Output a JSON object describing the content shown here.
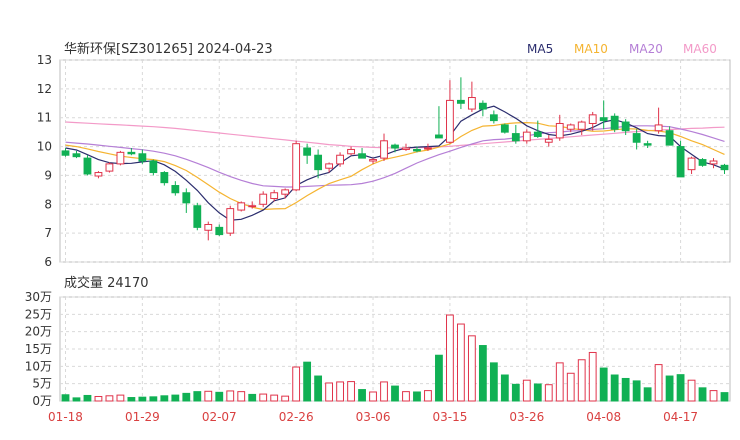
{
  "title": "华新环保[SZ301265] 2024-04-23",
  "legend": [
    {
      "label": "MA5",
      "color": "#2b2d6e"
    },
    {
      "label": "MA10",
      "color": "#f5b431"
    },
    {
      "label": "MA20",
      "color": "#b57fd6"
    },
    {
      "label": "MA60",
      "color": "#f39ac8"
    }
  ],
  "volume_title": "成交量 24170",
  "colors": {
    "up": "#e0334a",
    "down": "#10b054",
    "grid": "#d9d9d9",
    "axis": "#333333",
    "date": "#d94040"
  },
  "chart_data": [
    {
      "type": "candlestick",
      "ylim": [
        6,
        13
      ],
      "yticks": [
        6,
        7,
        8,
        9,
        10,
        11,
        12,
        13
      ],
      "xtick_labels": [
        "01-18",
        "01-29",
        "02-07",
        "02-26",
        "03-06",
        "03-15",
        "03-26",
        "04-08",
        "04-17"
      ],
      "xtick_index": [
        0,
        7,
        14,
        21,
        28,
        35,
        42,
        49,
        56
      ],
      "ohlc": [
        [
          9.85,
          9.95,
          9.65,
          9.7
        ],
        [
          9.75,
          9.85,
          9.6,
          9.65
        ],
        [
          9.6,
          9.7,
          9.0,
          9.05
        ],
        [
          8.98,
          9.15,
          8.9,
          9.1
        ],
        [
          9.15,
          9.45,
          9.1,
          9.4
        ],
        [
          9.4,
          9.85,
          9.35,
          9.8
        ],
        [
          9.8,
          9.95,
          9.7,
          9.75
        ],
        [
          9.75,
          9.9,
          9.4,
          9.5
        ],
        [
          9.5,
          9.55,
          9.0,
          9.1
        ],
        [
          9.1,
          9.15,
          8.65,
          8.75
        ],
        [
          8.65,
          8.8,
          8.3,
          8.4
        ],
        [
          8.4,
          8.55,
          7.7,
          8.05
        ],
        [
          7.95,
          8.05,
          7.1,
          7.2
        ],
        [
          7.1,
          7.4,
          6.75,
          7.3
        ],
        [
          7.2,
          7.3,
          6.9,
          6.95
        ],
        [
          7.0,
          7.95,
          6.9,
          7.85
        ],
        [
          7.8,
          8.1,
          7.75,
          8.05
        ],
        [
          7.95,
          8.1,
          7.85,
          7.95
        ],
        [
          8.0,
          8.45,
          7.9,
          8.35
        ],
        [
          8.2,
          8.5,
          8.1,
          8.4
        ],
        [
          8.35,
          8.55,
          8.2,
          8.5
        ],
        [
          8.5,
          10.2,
          8.45,
          10.1
        ],
        [
          9.95,
          10.1,
          9.4,
          9.7
        ],
        [
          9.7,
          9.9,
          8.9,
          9.2
        ],
        [
          9.25,
          9.45,
          9.1,
          9.4
        ],
        [
          9.4,
          9.8,
          9.3,
          9.7
        ],
        [
          9.75,
          10.0,
          9.7,
          9.9
        ],
        [
          9.75,
          9.95,
          9.6,
          9.6
        ],
        [
          9.5,
          9.6,
          9.4,
          9.55
        ],
        [
          9.6,
          10.45,
          9.5,
          10.2
        ],
        [
          10.05,
          10.1,
          9.8,
          9.95
        ],
        [
          9.9,
          10.1,
          9.85,
          9.95
        ],
        [
          9.9,
          10.0,
          9.8,
          9.85
        ],
        [
          9.95,
          10.1,
          9.85,
          9.95
        ],
        [
          10.4,
          11.4,
          10.3,
          10.3
        ],
        [
          10.15,
          12.3,
          10.1,
          11.6
        ],
        [
          11.6,
          12.4,
          11.3,
          11.5
        ],
        [
          11.3,
          12.25,
          11.2,
          11.7
        ],
        [
          11.5,
          11.6,
          11.05,
          11.3
        ],
        [
          11.1,
          11.25,
          10.8,
          10.9
        ],
        [
          10.75,
          10.8,
          10.45,
          10.5
        ],
        [
          10.45,
          10.75,
          10.1,
          10.2
        ],
        [
          10.2,
          10.6,
          10.1,
          10.5
        ],
        [
          10.5,
          10.9,
          10.3,
          10.35
        ],
        [
          10.15,
          10.4,
          10.0,
          10.25
        ],
        [
          10.3,
          11.1,
          10.2,
          10.8
        ],
        [
          10.6,
          10.8,
          10.5,
          10.75
        ],
        [
          10.6,
          10.9,
          10.4,
          10.85
        ],
        [
          10.8,
          11.2,
          10.55,
          11.1
        ],
        [
          11.0,
          11.6,
          10.6,
          10.9
        ],
        [
          11.05,
          11.15,
          10.5,
          10.6
        ],
        [
          10.85,
          10.95,
          10.4,
          10.55
        ],
        [
          10.45,
          10.6,
          9.9,
          10.15
        ],
        [
          10.1,
          10.2,
          9.95,
          10.05
        ],
        [
          10.55,
          11.35,
          10.45,
          10.75
        ],
        [
          10.55,
          10.7,
          10.1,
          10.05
        ],
        [
          10.0,
          10.2,
          8.95,
          8.95
        ],
        [
          9.2,
          9.65,
          9.05,
          9.6
        ],
        [
          9.55,
          9.6,
          9.3,
          9.35
        ],
        [
          9.4,
          9.6,
          9.25,
          9.5
        ],
        [
          9.35,
          9.4,
          9.05,
          9.2
        ]
      ],
      "ma5": [
        9.95,
        9.88,
        9.72,
        9.55,
        9.44,
        9.41,
        9.42,
        9.47,
        9.51,
        9.37,
        9.14,
        8.83,
        8.48,
        8.05,
        7.7,
        7.45,
        7.48,
        7.62,
        7.8,
        8.12,
        8.22,
        8.65,
        8.85,
        9.0,
        9.1,
        9.43,
        9.68,
        9.72,
        9.6,
        9.7,
        9.85,
        9.95,
        9.98,
        10.0,
        10.02,
        10.37,
        10.88,
        11.1,
        11.3,
        11.4,
        11.2,
        10.98,
        10.72,
        10.55,
        10.42,
        10.37,
        10.43,
        10.53,
        10.66,
        10.85,
        10.93,
        10.82,
        10.65,
        10.45,
        10.38,
        10.36,
        10.0,
        9.73,
        9.47,
        9.37,
        9.22
      ],
      "ma10": [
        10.05,
        10.0,
        9.92,
        9.83,
        9.75,
        9.67,
        9.62,
        9.58,
        9.55,
        9.48,
        9.34,
        9.17,
        8.93,
        8.68,
        8.42,
        8.2,
        8.03,
        7.9,
        7.82,
        7.84,
        7.85,
        8.06,
        8.3,
        8.52,
        8.72,
        8.85,
        8.97,
        9.2,
        9.4,
        9.55,
        9.63,
        9.72,
        9.82,
        9.88,
        9.98,
        10.09,
        10.35,
        10.56,
        10.71,
        10.73,
        10.79,
        10.82,
        10.83,
        10.81,
        10.72,
        10.7,
        10.63,
        10.58,
        10.53,
        10.54,
        10.58,
        10.62,
        10.61,
        10.56,
        10.54,
        10.48,
        10.35,
        10.2,
        10.07,
        9.9,
        9.73
      ],
      "ma20": [
        10.15,
        10.12,
        10.09,
        10.05,
        10.01,
        9.97,
        9.93,
        9.89,
        9.84,
        9.77,
        9.68,
        9.56,
        9.42,
        9.27,
        9.11,
        8.96,
        8.83,
        8.72,
        8.64,
        8.62,
        8.6,
        8.6,
        8.62,
        8.64,
        8.66,
        8.67,
        8.68,
        8.72,
        8.8,
        8.92,
        9.07,
        9.25,
        9.43,
        9.58,
        9.72,
        9.84,
        9.97,
        10.09,
        10.2,
        10.24,
        10.26,
        10.3,
        10.37,
        10.44,
        10.48,
        10.5,
        10.54,
        10.55,
        10.59,
        10.62,
        10.66,
        10.7,
        10.72,
        10.72,
        10.71,
        10.69,
        10.61,
        10.52,
        10.42,
        10.3,
        10.18
      ],
      "ma60": [
        10.85,
        10.83,
        10.81,
        10.79,
        10.77,
        10.75,
        10.73,
        10.71,
        10.69,
        10.66,
        10.63,
        10.59,
        10.55,
        10.51,
        10.47,
        10.43,
        10.39,
        10.35,
        10.31,
        10.27,
        10.23,
        10.19,
        10.15,
        10.11,
        10.07,
        10.04,
        10.01,
        9.99,
        9.97,
        9.96,
        9.95,
        9.95,
        9.96,
        9.97,
        9.99,
        10.01,
        10.04,
        10.07,
        10.1,
        10.13,
        10.16,
        10.19,
        10.22,
        10.25,
        10.28,
        10.31,
        10.34,
        10.37,
        10.4,
        10.43,
        10.46,
        10.49,
        10.52,
        10.55,
        10.57,
        10.59,
        10.61,
        10.63,
        10.64,
        10.66,
        10.67
      ]
    },
    {
      "type": "bar",
      "title": "成交量 24170",
      "ylim": [
        0,
        300000
      ],
      "ytick_labels": [
        "0万",
        "5万",
        "10万",
        "15万",
        "20万",
        "25万",
        "30万"
      ],
      "ytick_values": [
        0,
        50000,
        100000,
        150000,
        200000,
        250000,
        300000
      ],
      "values": [
        18000,
        9000,
        16000,
        13000,
        15000,
        17000,
        10000,
        11000,
        12000,
        15000,
        17000,
        22000,
        27000,
        28000,
        25000,
        29000,
        27000,
        19000,
        20000,
        17000,
        14000,
        98000,
        112000,
        72000,
        52000,
        55000,
        56000,
        33000,
        26000,
        55000,
        43000,
        27000,
        26000,
        30000,
        132000,
        248000,
        222000,
        188000,
        160000,
        110000,
        75000,
        48000,
        60000,
        49000,
        47000,
        110000,
        80000,
        119000,
        140000,
        95000,
        75000,
        65000,
        58000,
        38000,
        105000,
        72000,
        76000,
        60000,
        38000,
        30000,
        24170
      ],
      "up": [
        false,
        false,
        false,
        true,
        true,
        true,
        false,
        false,
        false,
        false,
        false,
        false,
        false,
        true,
        false,
        true,
        true,
        false,
        true,
        true,
        true,
        true,
        false,
        false,
        true,
        true,
        true,
        false,
        true,
        true,
        false,
        true,
        false,
        true,
        false,
        true,
        true,
        true,
        false,
        false,
        false,
        false,
        true,
        false,
        true,
        true,
        true,
        true,
        true,
        false,
        false,
        false,
        false,
        false,
        true,
        false,
        false,
        true,
        false,
        true,
        false
      ]
    }
  ]
}
